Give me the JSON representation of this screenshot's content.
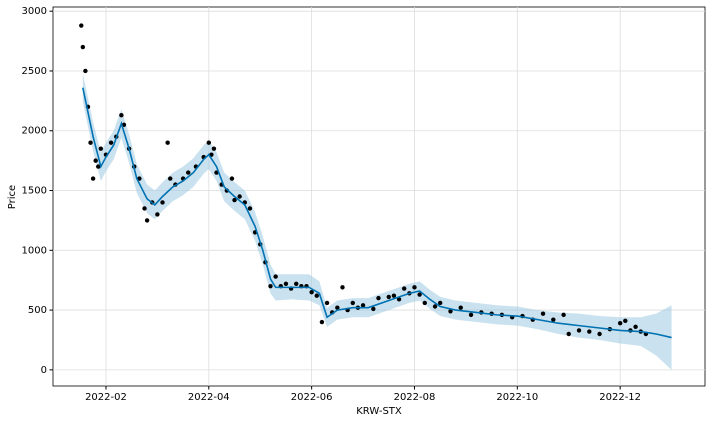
{
  "chart_data": {
    "type": "forecast",
    "x_label": "KRW-STX",
    "y_label": "Price",
    "xlim": [
      -0.03,
      12.65
    ],
    "ylim": [
      -135,
      3035
    ],
    "xticks": [
      {
        "value": 1,
        "label": "2022-02"
      },
      {
        "value": 3,
        "label": "2022-04"
      },
      {
        "value": 5,
        "label": "2022-06"
      },
      {
        "value": 7,
        "label": "2022-08"
      },
      {
        "value": 9,
        "label": "2022-10"
      },
      {
        "value": 11,
        "label": "2022-12"
      }
    ],
    "yticks": [
      0,
      500,
      1000,
      1500,
      2000,
      2500,
      3000
    ],
    "grid": true,
    "observed": {
      "color": "#000000",
      "x": [
        0.52,
        0.55,
        0.6,
        0.65,
        0.7,
        0.75,
        0.8,
        0.85,
        0.9,
        1.0,
        1.1,
        1.2,
        1.3,
        1.35,
        1.45,
        1.55,
        1.65,
        1.75,
        1.8,
        1.9,
        2.0,
        2.1,
        2.2,
        2.25,
        2.35,
        2.5,
        2.6,
        2.75,
        2.9,
        3.0,
        3.05,
        3.1,
        3.15,
        3.25,
        3.35,
        3.45,
        3.5,
        3.6,
        3.7,
        3.8,
        3.9,
        4.0,
        4.1,
        4.2,
        4.3,
        4.4,
        4.5,
        4.6,
        4.7,
        4.8,
        4.9,
        5.0,
        5.1,
        5.2,
        5.3,
        5.4,
        5.5,
        5.6,
        5.7,
        5.8,
        5.9,
        6.0,
        6.2,
        6.3,
        6.5,
        6.6,
        6.7,
        6.8,
        6.9,
        7.0,
        7.1,
        7.2,
        7.4,
        7.5,
        7.7,
        7.9,
        8.1,
        8.3,
        8.5,
        8.7,
        8.9,
        9.1,
        9.3,
        9.5,
        9.7,
        9.9,
        10.0,
        10.2,
        10.4,
        10.6,
        10.8,
        11.0,
        11.1,
        11.2,
        11.3,
        11.4,
        11.5
      ],
      "values": [
        2880,
        2700,
        2500,
        2200,
        1900,
        1600,
        1750,
        1700,
        1850,
        1800,
        1900,
        1950,
        2130,
        2050,
        1850,
        1700,
        1600,
        1350,
        1250,
        1400,
        1300,
        1400,
        1900,
        1600,
        1550,
        1600,
        1650,
        1700,
        1780,
        1900,
        1800,
        1850,
        1650,
        1550,
        1500,
        1600,
        1420,
        1450,
        1400,
        1350,
        1150,
        1050,
        900,
        700,
        780,
        700,
        720,
        680,
        720,
        700,
        700,
        650,
        620,
        400,
        560,
        480,
        520,
        690,
        500,
        560,
        520,
        540,
        510,
        600,
        610,
        620,
        590,
        680,
        640,
        690,
        630,
        560,
        530,
        560,
        490,
        520,
        460,
        480,
        470,
        460,
        440,
        450,
        420,
        470,
        420,
        460,
        300,
        330,
        320,
        300,
        340,
        390,
        410,
        330,
        360,
        320,
        300
      ]
    },
    "forecast": {
      "color": "#0072b2",
      "band_color": "#9ecae1",
      "x": [
        0.55,
        0.75,
        0.9,
        1.0,
        1.15,
        1.3,
        1.45,
        1.6,
        1.8,
        1.95,
        2.1,
        2.3,
        2.5,
        2.7,
        2.9,
        3.0,
        3.15,
        3.3,
        3.5,
        3.7,
        3.9,
        4.05,
        4.2,
        4.3,
        4.6,
        4.95,
        5.15,
        5.3,
        5.5,
        5.8,
        6.1,
        6.5,
        6.9,
        7.1,
        7.3,
        7.5,
        7.8,
        8.2,
        8.6,
        9.0,
        9.4,
        9.8,
        10.2,
        10.6,
        11.0,
        11.4,
        11.7,
        12.0
      ],
      "values": [
        2360,
        1950,
        1700,
        1780,
        1880,
        2060,
        1850,
        1600,
        1430,
        1380,
        1450,
        1530,
        1580,
        1650,
        1760,
        1800,
        1700,
        1530,
        1450,
        1380,
        1200,
        1000,
        760,
        690,
        690,
        690,
        640,
        440,
        500,
        520,
        520,
        580,
        640,
        660,
        590,
        530,
        500,
        480,
        460,
        450,
        420,
        390,
        370,
        350,
        330,
        320,
        300,
        270
      ],
      "lower": [
        2240,
        1830,
        1580,
        1660,
        1760,
        1940,
        1730,
        1480,
        1310,
        1260,
        1330,
        1410,
        1460,
        1530,
        1640,
        1680,
        1580,
        1410,
        1330,
        1260,
        1080,
        880,
        640,
        580,
        590,
        580,
        540,
        360,
        420,
        440,
        440,
        500,
        560,
        580,
        510,
        450,
        420,
        400,
        380,
        370,
        340,
        300,
        270,
        250,
        220,
        200,
        120,
        0
      ],
      "upper": [
        2480,
        2070,
        1820,
        1900,
        2000,
        2180,
        1970,
        1720,
        1550,
        1500,
        1570,
        1650,
        1700,
        1770,
        1880,
        1920,
        1820,
        1650,
        1570,
        1500,
        1320,
        1120,
        880,
        800,
        800,
        800,
        740,
        520,
        580,
        600,
        600,
        660,
        720,
        740,
        670,
        610,
        580,
        560,
        540,
        530,
        500,
        480,
        470,
        450,
        440,
        440,
        470,
        540
      ]
    }
  }
}
